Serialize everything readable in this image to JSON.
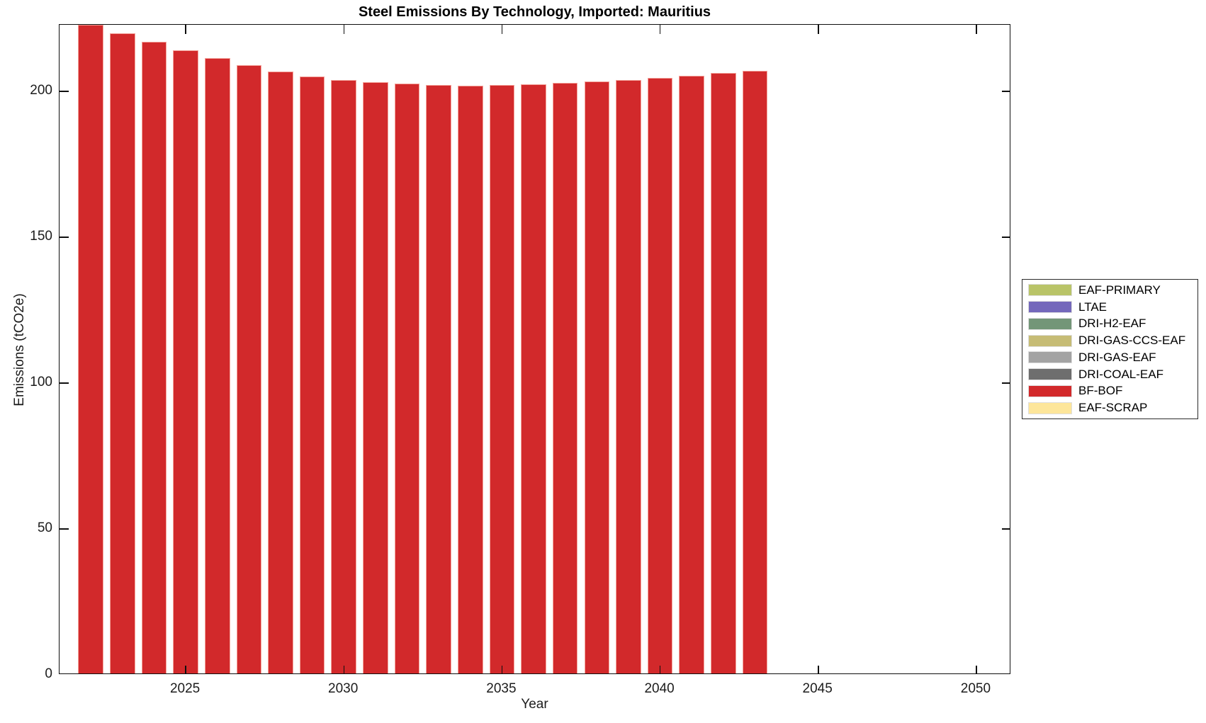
{
  "figure": {
    "background": "#ffffff"
  },
  "chart_data": {
    "type": "bar",
    "title": "Steel Emissions By Technology, Imported: Mauritius",
    "xlabel": "Year",
    "ylabel": "Emissions (tCO2e)",
    "xlim": [
      2021.01,
      2051.1
    ],
    "ylim": [
      0,
      222.8
    ],
    "x_ticks": [
      2025,
      2030,
      2035,
      2040,
      2045,
      2050
    ],
    "y_ticks": [
      0,
      50,
      100,
      150,
      200
    ],
    "grid": false,
    "bar_width_years": 0.8,
    "visible_series_name": "BF-BOF",
    "bar_color": "#d2292b",
    "categories": [
      2022,
      2023,
      2024,
      2025,
      2026,
      2027,
      2028,
      2029,
      2030,
      2031,
      2032,
      2033,
      2034,
      2035,
      2036,
      2037,
      2038,
      2039,
      2040,
      2041,
      2042,
      2043
    ],
    "values": [
      223.0,
      219.9,
      217.0,
      214.1,
      211.4,
      209.0,
      206.9,
      205.2,
      204.0,
      203.2,
      202.6,
      202.2,
      202.0,
      202.1,
      202.5,
      202.8,
      203.4,
      203.8,
      204.6,
      205.3,
      206.2,
      207.0
    ],
    "legend_position": "right-outside",
    "legend": [
      {
        "label": "EAF-PRIMARY",
        "color": "#b9c468"
      },
      {
        "label": "LTAE",
        "color": "#7468bb"
      },
      {
        "label": "DRI-H2-EAF",
        "color": "#739678"
      },
      {
        "label": "DRI-GAS-CCS-EAF",
        "color": "#c6bc75"
      },
      {
        "label": "DRI-GAS-EAF",
        "color": "#a3a3a3"
      },
      {
        "label": "DRI-COAL-EAF",
        "color": "#6e6e6e"
      },
      {
        "label": "BF-BOF",
        "color": "#d2292b"
      },
      {
        "label": "EAF-SCRAP",
        "color": "#fde69a"
      }
    ]
  }
}
